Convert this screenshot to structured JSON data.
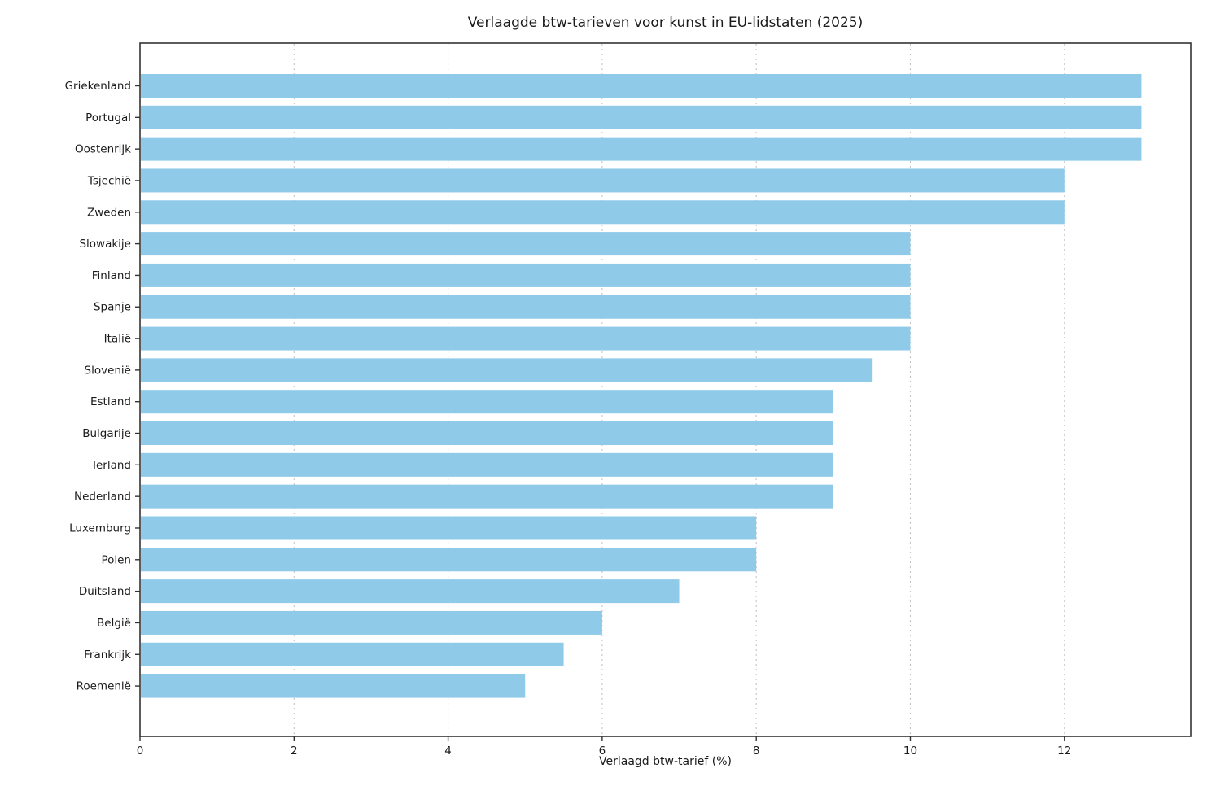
{
  "chart_data": {
    "type": "bar",
    "orientation": "horizontal",
    "title": "Verlaagde btw-tarieven voor kunst in EU-lidstaten (2025)",
    "xlabel": "Verlaagd btw-tarief (%)",
    "ylabel": "",
    "categories": [
      "Griekenland",
      "Portugal",
      "Oostenrijk",
      "Tsjechië",
      "Zweden",
      "Slowakije",
      "Finland",
      "Spanje",
      "Italië",
      "Slovenië",
      "Estland",
      "Bulgarije",
      "Ierland",
      "Nederland",
      "Luxemburg",
      "Polen",
      "Duitsland",
      "België",
      "Frankrijk",
      "Roemenië"
    ],
    "values": [
      13,
      13,
      13,
      12,
      12,
      10,
      10,
      10,
      10,
      9.5,
      9,
      9,
      9,
      9,
      8,
      8,
      7,
      6,
      5.5,
      5
    ],
    "xlim": [
      0,
      13.64
    ],
    "xticks": [
      0,
      2,
      4,
      6,
      8,
      10,
      12
    ],
    "grid": "vertical-dashed",
    "legend": "none",
    "bar_color": "#8fcae9",
    "axis_color": "#333333",
    "grid_color": "#c4c4c4",
    "text_color": "#1a1a1a"
  }
}
